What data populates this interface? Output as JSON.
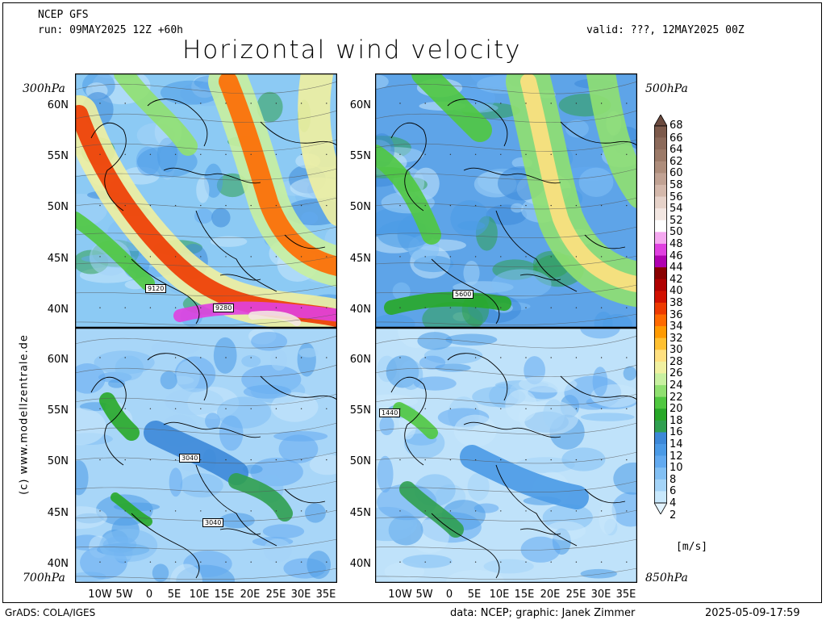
{
  "header": {
    "model": "NCEP GFS",
    "run": "run: 09MAY2025 12Z +60h",
    "valid": "valid: ???, 12MAY2025 00Z",
    "title": "Horizontal wind velocity"
  },
  "panels": [
    {
      "level": "300hPa",
      "contour_label": "9120",
      "contour_label2": "9280"
    },
    {
      "level": "500hPa",
      "contour_label": "5600"
    },
    {
      "level": "700hPa",
      "contour_label": "3040",
      "contour_label2": "3040"
    },
    {
      "level": "850hPa",
      "contour_label": "1440"
    }
  ],
  "lat_labels": [
    "60N",
    "55N",
    "50N",
    "45N",
    "40N"
  ],
  "lon_labels": [
    "10W",
    "5W",
    "0",
    "5E",
    "10E",
    "15E",
    "20E",
    "25E",
    "30E",
    "35E"
  ],
  "colorbar": {
    "unit": "[m/s]",
    "levels": [
      "68",
      "66",
      "64",
      "62",
      "60",
      "58",
      "56",
      "54",
      "52",
      "50",
      "48",
      "46",
      "44",
      "42",
      "40",
      "38",
      "36",
      "34",
      "32",
      "30",
      "28",
      "26",
      "24",
      "22",
      "20",
      "18",
      "16",
      "14",
      "12",
      "10",
      "8",
      "6",
      "4",
      "2"
    ],
    "colors": [
      "#6b4a3e",
      "#7d5a4b",
      "#8c6a5a",
      "#9c7a68",
      "#ae8d7b",
      "#c1a293",
      "#d4b8ab",
      "#e6d2c9",
      "#f3e7e2",
      "#ffffff",
      "#f5a8f0",
      "#e040e0",
      "#b000b0",
      "#8a0000",
      "#b00000",
      "#d21000",
      "#ee3a00",
      "#ff6a00",
      "#ff9a00",
      "#ffc030",
      "#ffe080",
      "#f0f0a0",
      "#c8f0a0",
      "#90e070",
      "#50c840",
      "#28a828",
      "#30a050",
      "#3c88d8",
      "#4a9ae6",
      "#62aaf0",
      "#82c0f4",
      "#a4d4f8",
      "#c8e8fc",
      "#e4f4ff"
    ]
  },
  "side_text": "(c) www.modellzentrale.de",
  "footer": {
    "left": "GrADS: COLA/IGES",
    "center": "data: NCEP; graphic: Janek Zimmer",
    "right": "2025-05-09-17:59"
  }
}
